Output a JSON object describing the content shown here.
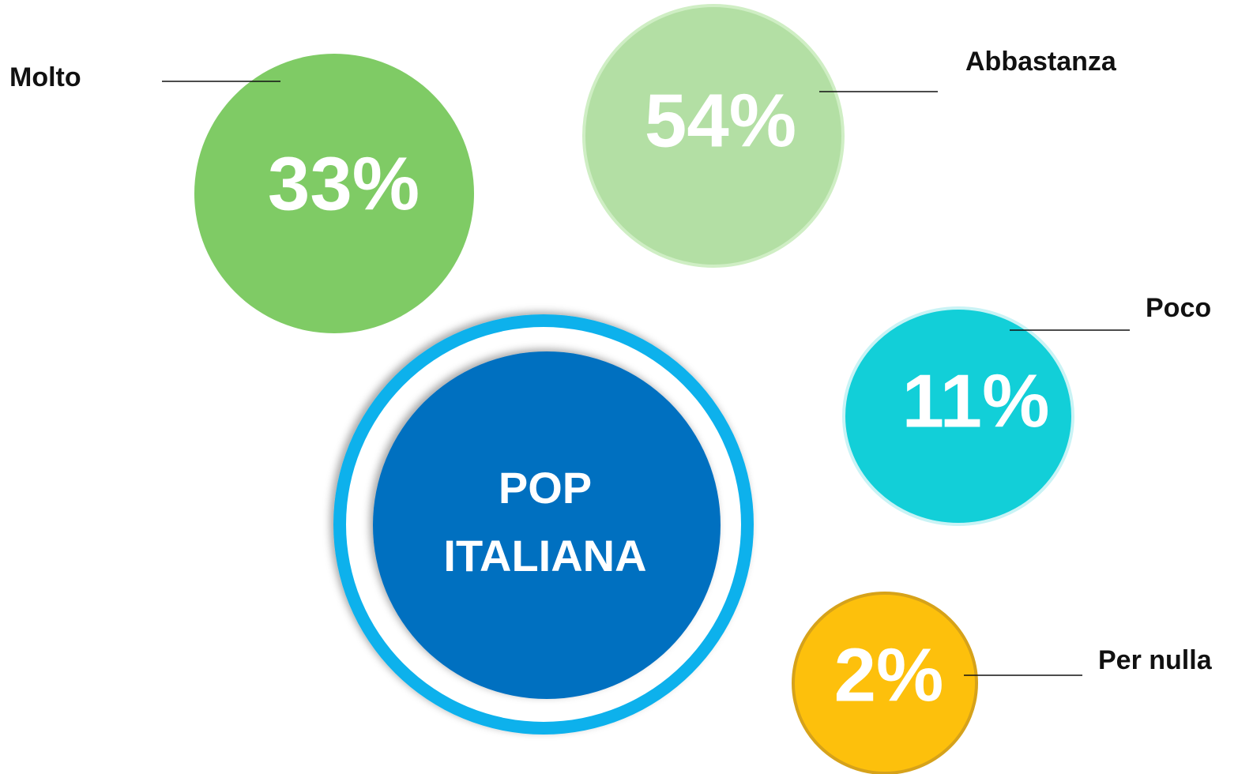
{
  "center": {
    "lines": [
      "POP",
      "ITALIANA"
    ]
  },
  "nodes": [
    {
      "label": "Molto",
      "value": "33%"
    },
    {
      "label": "Abbastanza",
      "value": "54%"
    },
    {
      "label": "Poco",
      "value": "11%"
    },
    {
      "label": "Per nulla",
      "value": "2%"
    }
  ]
}
